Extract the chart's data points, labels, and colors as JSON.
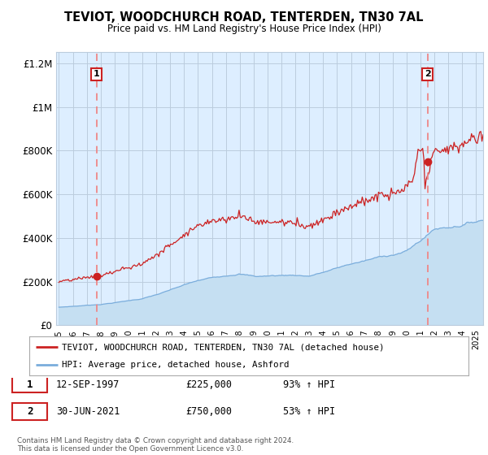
{
  "title": "TEVIOT, WOODCHURCH ROAD, TENTERDEN, TN30 7AL",
  "subtitle": "Price paid vs. HM Land Registry's House Price Index (HPI)",
  "ylim": [
    0,
    1250000
  ],
  "yticks": [
    0,
    200000,
    400000,
    600000,
    800000,
    1000000,
    1200000
  ],
  "ytick_labels": [
    "£0",
    "£200K",
    "£400K",
    "£600K",
    "£800K",
    "£1M",
    "£1.2M"
  ],
  "xlim_start": 1994.8,
  "xlim_end": 2025.5,
  "xticks": [
    1995,
    1996,
    1997,
    1998,
    1999,
    2000,
    2001,
    2002,
    2003,
    2004,
    2005,
    2006,
    2007,
    2008,
    2009,
    2010,
    2011,
    2012,
    2013,
    2014,
    2015,
    2016,
    2017,
    2018,
    2019,
    2020,
    2021,
    2022,
    2023,
    2024,
    2025
  ],
  "hpi_color": "#7aaddc",
  "hpi_fill_color": "#c5dff2",
  "price_color": "#cc2222",
  "sale1_date": 1997.7,
  "sale1_price": 225000,
  "sale2_date": 2021.5,
  "sale2_price": 750000,
  "legend_price_label": "TEVIOT, WOODCHURCH ROAD, TENTERDEN, TN30 7AL (detached house)",
  "legend_hpi_label": "HPI: Average price, detached house, Ashford",
  "footnote": "Contains HM Land Registry data © Crown copyright and database right 2024.\nThis data is licensed under the Open Government Licence v3.0.",
  "bg_color": "#ffffff",
  "plot_bg_color": "#ddeeff",
  "grid_color": "#bbccdd",
  "dashed_line_color": "#ee8888",
  "label_box_color": "#cc2222"
}
